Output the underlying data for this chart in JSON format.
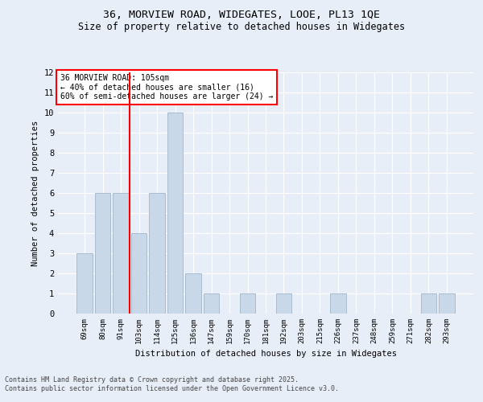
{
  "title_line1": "36, MORVIEW ROAD, WIDEGATES, LOOE, PL13 1QE",
  "title_line2": "Size of property relative to detached houses in Widegates",
  "xlabel": "Distribution of detached houses by size in Widegates",
  "ylabel": "Number of detached properties",
  "categories": [
    "69sqm",
    "80sqm",
    "91sqm",
    "103sqm",
    "114sqm",
    "125sqm",
    "136sqm",
    "147sqm",
    "159sqm",
    "170sqm",
    "181sqm",
    "192sqm",
    "203sqm",
    "215sqm",
    "226sqm",
    "237sqm",
    "248sqm",
    "259sqm",
    "271sqm",
    "282sqm",
    "293sqm"
  ],
  "values": [
    3,
    6,
    6,
    4,
    6,
    10,
    2,
    1,
    0,
    1,
    0,
    1,
    0,
    0,
    1,
    0,
    0,
    0,
    0,
    1,
    1
  ],
  "bar_color": "#c8d8e8",
  "bar_edge_color": "#a8bccf",
  "red_line_x": 2.5,
  "annotation_text": "36 MORVIEW ROAD: 105sqm\n← 40% of detached houses are smaller (16)\n60% of semi-detached houses are larger (24) →",
  "annotation_box_color": "white",
  "annotation_box_edge_color": "red",
  "ylim": [
    0,
    12
  ],
  "yticks": [
    0,
    1,
    2,
    3,
    4,
    5,
    6,
    7,
    8,
    9,
    10,
    11,
    12
  ],
  "background_color": "#e8eef8",
  "grid_color": "#ffffff",
  "footer_line1": "Contains HM Land Registry data © Crown copyright and database right 2025.",
  "footer_line2": "Contains public sector information licensed under the Open Government Licence v3.0."
}
